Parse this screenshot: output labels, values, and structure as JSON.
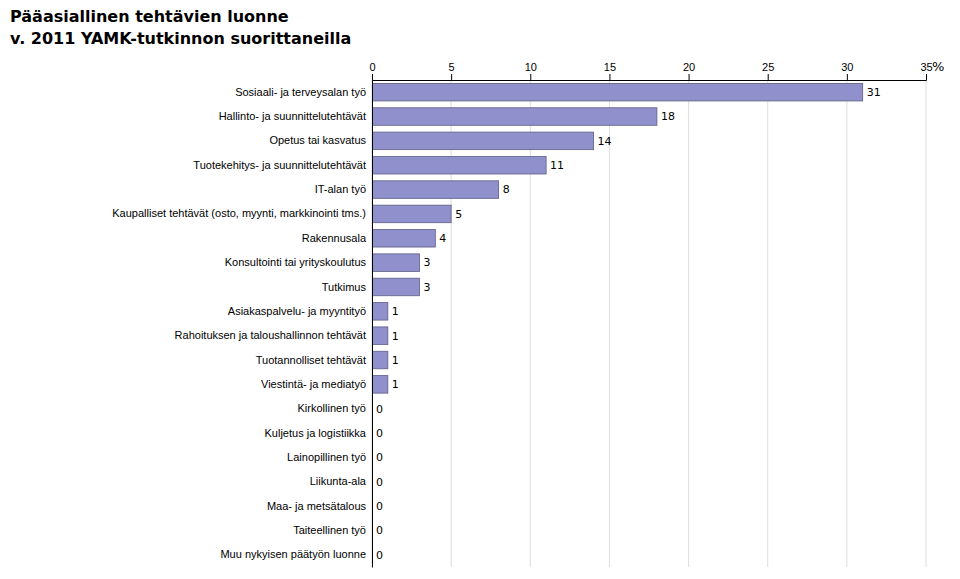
{
  "chart_data": {
    "type": "bar",
    "orientation": "horizontal",
    "title": "Pääasiallinen tehtävien luonne",
    "subtitle": "v. 2011 YAMK-tutkinnon suorittaneilla",
    "xlabel": "%",
    "categories": [
      "Sosiaali- ja terveysalan työ",
      "Hallinto- ja suunnittelutehtävät",
      "Opetus tai kasvatus",
      "Tuotekehitys- ja suunnittelutehtävät",
      "IT-alan työ",
      "Kaupalliset tehtävät (osto, myynti, markkinointi tms.)",
      "Rakennusala",
      "Konsultointi tai yrityskoulutus",
      "Tutkimus",
      "Asiakaspalvelu- ja myyntityö",
      "Rahoituksen ja taloushallinnon tehtävät",
      "Tuotannolliset tehtävät",
      "Viestintä- ja mediatyö",
      "Kirkollinen työ",
      "Kuljetus ja logistiikka",
      "Lainopillinen työ",
      "Liikunta-ala",
      "Maa- ja metsätalous",
      "Taiteellinen työ",
      "Muu nykyisen päätyön luonne"
    ],
    "values": [
      31,
      18,
      14,
      11,
      8,
      5,
      4,
      3,
      3,
      1,
      1,
      1,
      1,
      0,
      0,
      0,
      0,
      0,
      0,
      0
    ],
    "color": "#9090cc",
    "xlim": [
      0,
      35
    ],
    "xticks": [
      0,
      5,
      10,
      15,
      20,
      25,
      30,
      35
    ],
    "grid": true,
    "data_labels": true
  }
}
